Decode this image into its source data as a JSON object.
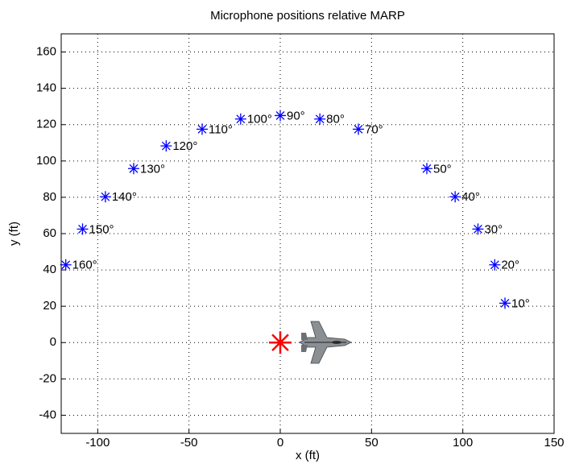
{
  "chart_data": {
    "type": "scatter",
    "title": "Microphone positions relative MARP",
    "xlabel": "x (ft)",
    "ylabel": "y (ft)",
    "xlim": [
      -120,
      150
    ],
    "ylim": [
      -50,
      170
    ],
    "xticks": [
      -100,
      -50,
      0,
      50,
      100,
      150
    ],
    "yticks": [
      -40,
      -20,
      0,
      20,
      40,
      60,
      80,
      100,
      120,
      140,
      160
    ],
    "grid": true,
    "series": [
      {
        "color": "#0000ff",
        "marker": "asterisk",
        "x": [
          123.1,
          117.5,
          108.3,
          95.8,
          80.3,
          42.8,
          21.7,
          0,
          -21.7,
          -42.8,
          -62.5,
          -80.3,
          -95.8,
          -108.3,
          -117.5
        ],
        "values": [
          21.7,
          42.8,
          62.5,
          80.3,
          95.8,
          117.5,
          123.1,
          125,
          123.1,
          117.5,
          108.3,
          95.8,
          80.3,
          62.5,
          42.8
        ],
        "labels": [
          "10°",
          "20°",
          "30°",
          "40°",
          "50°",
          "70°",
          "80°",
          "90°",
          "100°",
          "110°",
          "120°",
          "130°",
          "140°",
          "150°",
          "160°"
        ]
      },
      {
        "color": "#ff0000",
        "marker": "asterisk-large",
        "x": [
          0
        ],
        "values": [
          0
        ]
      }
    ]
  }
}
